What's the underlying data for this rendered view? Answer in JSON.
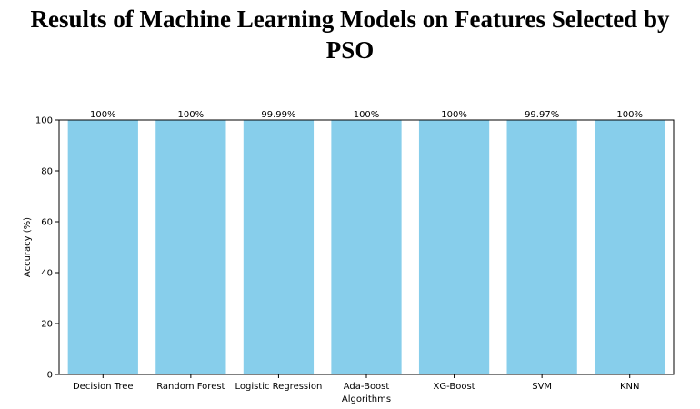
{
  "title_line1": "Results of Machine Learning Models on Features Selected by",
  "title_line2": "PSO",
  "chart_data": {
    "type": "bar",
    "title": "Results of Machine Learning Models on Features Selected by PSO",
    "categories": [
      "Decision Tree",
      "Random Forest",
      "Logistic Regression",
      "Ada-Boost",
      "XG-Boost",
      "SVM",
      "KNN"
    ],
    "values": [
      100,
      100,
      99.99,
      100,
      100,
      99.97,
      100
    ],
    "data_labels": [
      "100%",
      "100%",
      "99.99%",
      "100%",
      "100%",
      "99.97%",
      "100%"
    ],
    "xlabel": "Algorithms",
    "ylabel": "Accuracy (%)",
    "ylim": [
      0,
      100
    ],
    "yticks": [
      0,
      20,
      40,
      60,
      80,
      100
    ],
    "bar_color": "#87CEEB",
    "grid": false,
    "legend": "none"
  }
}
